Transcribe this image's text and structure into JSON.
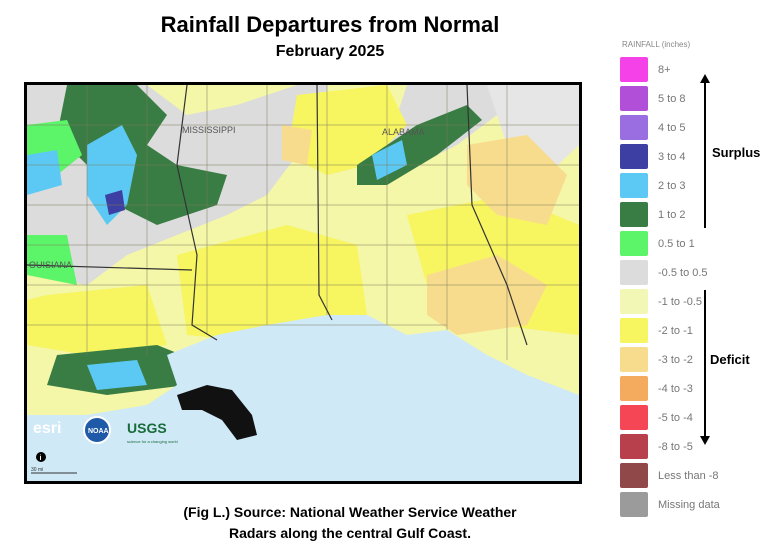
{
  "title": "Rainfall Departures from Normal",
  "subtitle": "February 2025",
  "caption_line1": "(Fig L.) Source: National Weather Service Weather",
  "caption_line2": "Radars along the central Gulf Coast.",
  "map": {
    "state_labels": [
      "MISSISSIPPI",
      "ALABAMA",
      "OUISIANA"
    ],
    "logos": [
      "esri",
      "NOAA",
      "USGS"
    ],
    "usgs_tagline": "science for a changing world",
    "scale_label": "30 mi",
    "info_icon": "i"
  },
  "legend": {
    "title": "RAINFALL (inches)",
    "items": [
      {
        "label": "8+",
        "color": "#f542e8"
      },
      {
        "label": "5 to 8",
        "color": "#b24fd8"
      },
      {
        "label": "4 to 5",
        "color": "#9a6ee0"
      },
      {
        "label": "3 to 4",
        "color": "#3d3fa3"
      },
      {
        "label": "2 to 3",
        "color": "#5cc9f5"
      },
      {
        "label": "1 to 2",
        "color": "#3a7d44"
      },
      {
        "label": "0.5 to 1",
        "color": "#5cf56a"
      },
      {
        "label": "-0.5 to 0.5",
        "color": "#dcdcdc"
      },
      {
        "label": "-1 to -0.5",
        "color": "#f3f7b6"
      },
      {
        "label": "-2 to -1",
        "color": "#f7f560"
      },
      {
        "label": "-3 to -2",
        "color": "#f8dc8e"
      },
      {
        "label": "-4 to -3",
        "color": "#f5ab5e"
      },
      {
        "label": "-5 to -4",
        "color": "#f54655"
      },
      {
        "label": "-8 to -5",
        "color": "#b8404c"
      },
      {
        "label": "Less than -8",
        "color": "#914848"
      },
      {
        "label": "Missing data",
        "color": "#9b9b9b"
      }
    ],
    "surplus_label": "Surplus",
    "deficit_label": "Deficit"
  }
}
